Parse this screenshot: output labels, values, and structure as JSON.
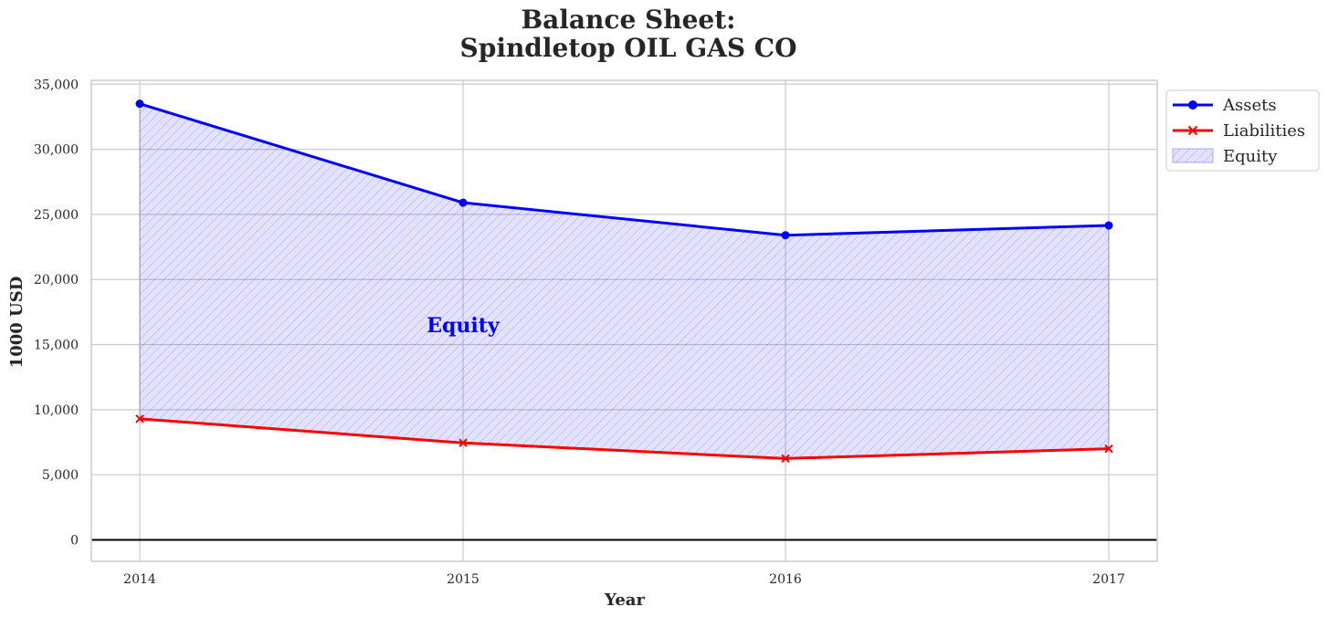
{
  "chart_data": {
    "type": "line",
    "title_line1": "Balance Sheet:",
    "title_line2": "Spindletop OIL GAS CO",
    "xlabel": "Year",
    "ylabel": "1000 USD",
    "categories": [
      "2014",
      "2015",
      "2016",
      "2017"
    ],
    "y_ticks": [
      0,
      5000,
      10000,
      15000,
      20000,
      25000,
      30000,
      35000
    ],
    "y_tick_labels": [
      "0",
      "5,000",
      "10,000",
      "15,000",
      "20,000",
      "25,000",
      "30,000",
      "35,000"
    ],
    "ylim": [
      -1650,
      35300
    ],
    "grid": true,
    "legend_position": "outside top-right",
    "series": [
      {
        "name": "Assets",
        "values": [
          33500,
          25900,
          23400,
          24150
        ],
        "color": "#0000ff",
        "marker": "circle"
      },
      {
        "name": "Liabilities",
        "values": [
          9300,
          7450,
          6250,
          7000
        ],
        "color": "#ff0000",
        "marker": "x"
      }
    ],
    "fill": {
      "name": "Equity",
      "between": [
        "Liabilities",
        "Assets"
      ],
      "color": "#0000ff",
      "hatch": "////"
    },
    "annotation": {
      "text": "Equity",
      "x": 2015,
      "y": 16500,
      "color": "#0000ff"
    },
    "zero_line_color": "#000000"
  }
}
